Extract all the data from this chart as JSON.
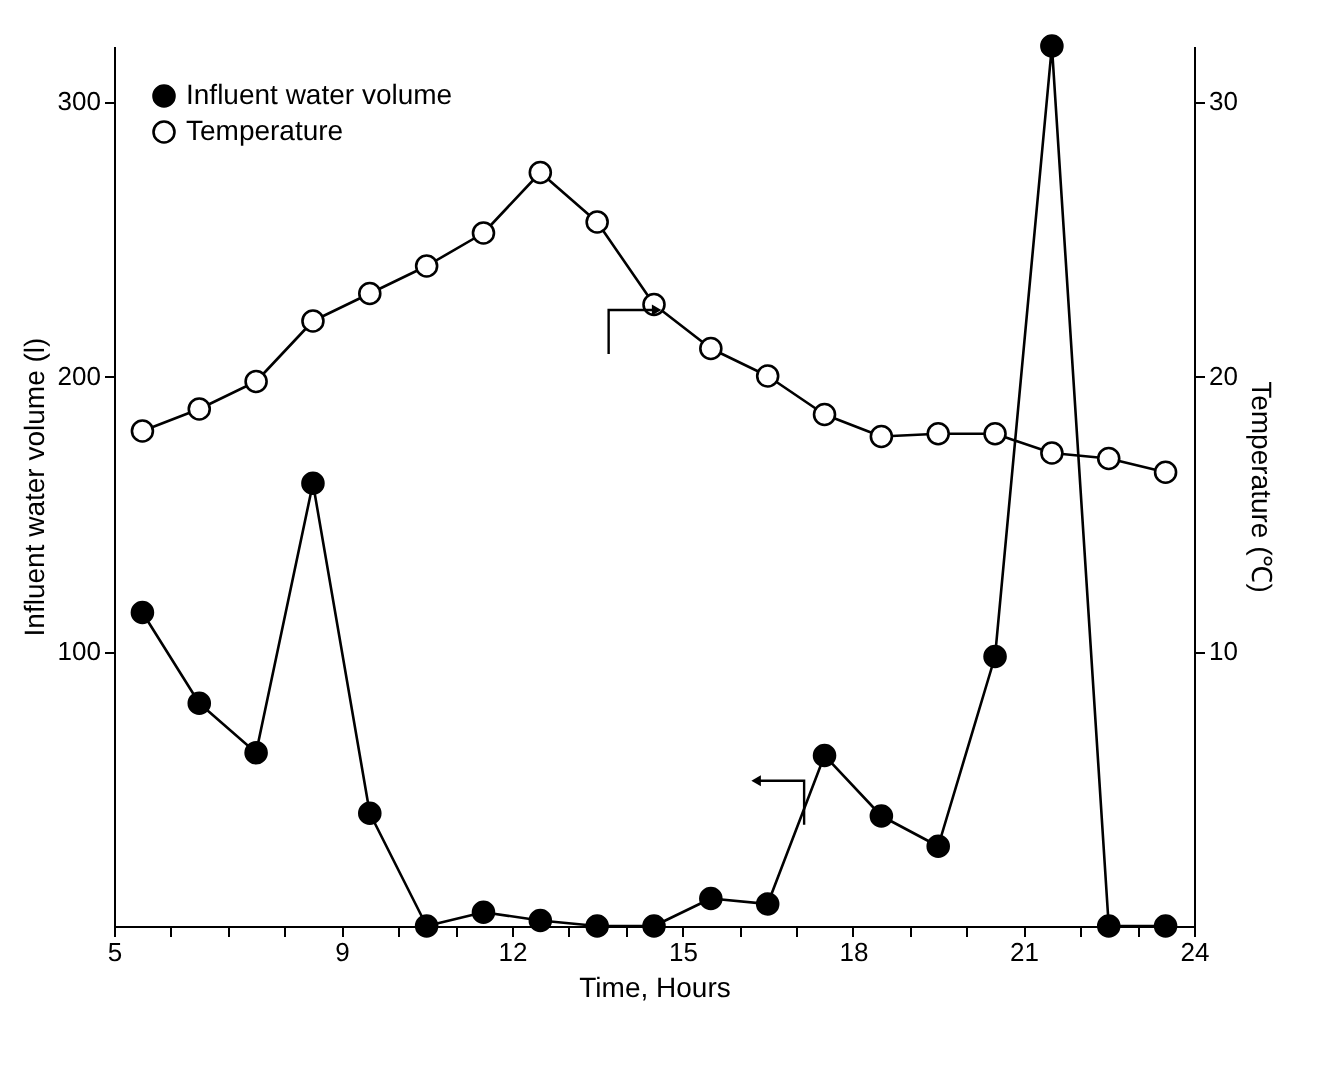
{
  "chart_data": {
    "type": "line",
    "xlabel": "Time, Hours",
    "ylabel": "Influent water volume (l)",
    "y2label": "Temperature (℃)",
    "x": [
      5.5,
      6.5,
      7.5,
      8.5,
      9.5,
      10.5,
      11.5,
      12.5,
      13.5,
      14.5,
      15.5,
      16.5,
      17.5,
      18.5,
      19.5,
      20.5,
      21.5,
      22.5,
      23.5
    ],
    "series": [
      {
        "name": "Influent water volume",
        "color": "#000000",
        "values": [
          114,
          81,
          63,
          161,
          41,
          0,
          5,
          2,
          0,
          0,
          10,
          8,
          62,
          40,
          29,
          98,
          320,
          0,
          0
        ]
      },
      {
        "name": "Temperature",
        "color": "#ffffff",
        "axis": "y2",
        "values": [
          18.0,
          18.8,
          19.8,
          22.0,
          23.0,
          24.0,
          25.2,
          27.4,
          25.6,
          22.6,
          21.0,
          20.0,
          18.6,
          17.8,
          17.9,
          17.9,
          17.2,
          17.0,
          16.5
        ]
      }
    ],
    "xlim": [
      5,
      24
    ],
    "xticks": [
      5,
      {
        "value": 6,
        "label": null
      },
      {
        "value": 7,
        "label": null
      },
      {
        "value": 8,
        "label": null
      },
      9,
      {
        "value": 10,
        "label": null
      },
      {
        "value": 11,
        "label": null
      },
      12,
      {
        "value": 13,
        "label": null
      },
      {
        "value": 14,
        "label": null
      },
      15,
      {
        "value": 16,
        "label": null
      },
      {
        "value": 17,
        "label": null
      },
      18,
      {
        "value": 19,
        "label": null
      },
      {
        "value": 20,
        "label": null
      },
      21,
      {
        "value": 22,
        "label": null
      },
      {
        "value": 23,
        "label": null
      },
      24
    ],
    "ylim": [
      0,
      320
    ],
    "yticks": [
      100,
      200,
      300
    ],
    "y2lim": [
      0,
      32
    ],
    "y2ticks": [
      10,
      20,
      30
    ],
    "marker": "circle",
    "legend": "top left",
    "grid": false
  }
}
